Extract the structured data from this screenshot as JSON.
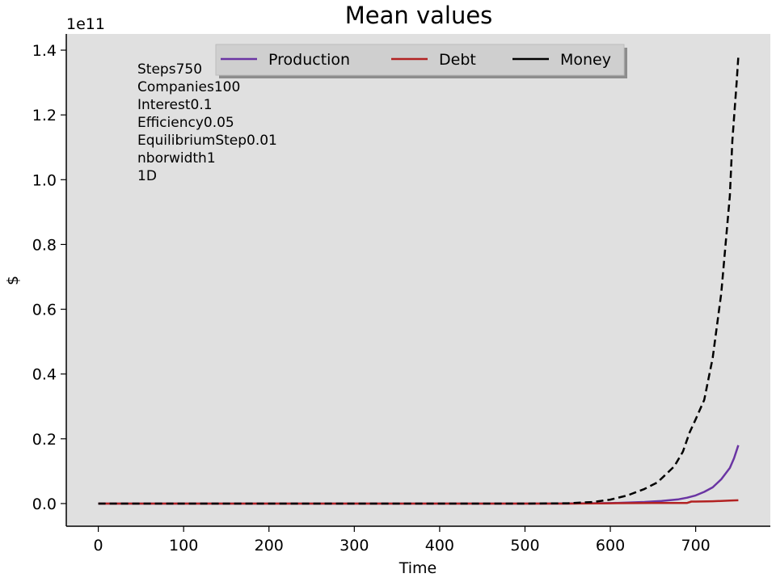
{
  "chart_data": {
    "type": "line",
    "title": "Mean values",
    "xlabel": "Time",
    "ylabel": "$",
    "y_offset_label": "1e11",
    "xlim": [
      -37.5,
      787.5
    ],
    "ylim": [
      -0.07,
      1.45
    ],
    "x_ticks": [
      0,
      100,
      200,
      300,
      400,
      500,
      600,
      700
    ],
    "y_ticks": [
      0.0,
      0.2,
      0.4,
      0.6,
      0.8,
      1.0,
      1.2,
      1.4
    ],
    "y_tick_labels": [
      "0.0",
      "0.2",
      "0.4",
      "0.6",
      "0.8",
      "1.0",
      "1.2",
      "1.4"
    ],
    "y_scale_note": "values in units of 1e11",
    "grid": false,
    "legend_position": "top-center",
    "background": "#e0e0e0",
    "annotations": [
      "Steps750",
      "Companies100",
      "Interest0.1",
      "Efficiency0.05",
      "EquilibriumStep0.01",
      "nborwidth1",
      "1D"
    ],
    "series": [
      {
        "name": "Production",
        "color": "#6a35a3",
        "dash": "solid",
        "x": [
          0,
          100,
          200,
          300,
          400,
          500,
          550,
          600,
          620,
          640,
          660,
          680,
          690,
          700,
          710,
          720,
          730,
          740,
          745,
          750
        ],
        "y": [
          0,
          0,
          0,
          0,
          0,
          0,
          0.0002,
          0.0015,
          0.003,
          0.005,
          0.008,
          0.013,
          0.018,
          0.025,
          0.036,
          0.05,
          0.075,
          0.11,
          0.14,
          0.18
        ]
      },
      {
        "name": "Debt",
        "color": "#b22222",
        "dash": "solid",
        "x": [
          0,
          100,
          200,
          300,
          400,
          500,
          550,
          600,
          650,
          690,
          695,
          700,
          720,
          740,
          750
        ],
        "y": [
          0,
          0,
          0,
          0,
          0,
          0,
          0,
          0.001,
          0.002,
          0.002,
          0.006,
          0.006,
          0.007,
          0.009,
          0.01
        ]
      },
      {
        "name": "Money",
        "color": "#000000",
        "dash": "dashed",
        "x": [
          0,
          100,
          200,
          300,
          400,
          500,
          550,
          580,
          600,
          620,
          640,
          655,
          665,
          675,
          685,
          693,
          700,
          710,
          720,
          730,
          740,
          743,
          748,
          750
        ],
        "y": [
          0,
          0,
          0,
          0,
          0,
          0,
          0.001,
          0.005,
          0.012,
          0.025,
          0.045,
          0.065,
          0.09,
          0.115,
          0.16,
          0.22,
          0.26,
          0.32,
          0.45,
          0.65,
          0.95,
          1.12,
          1.3,
          1.38
        ]
      }
    ]
  }
}
